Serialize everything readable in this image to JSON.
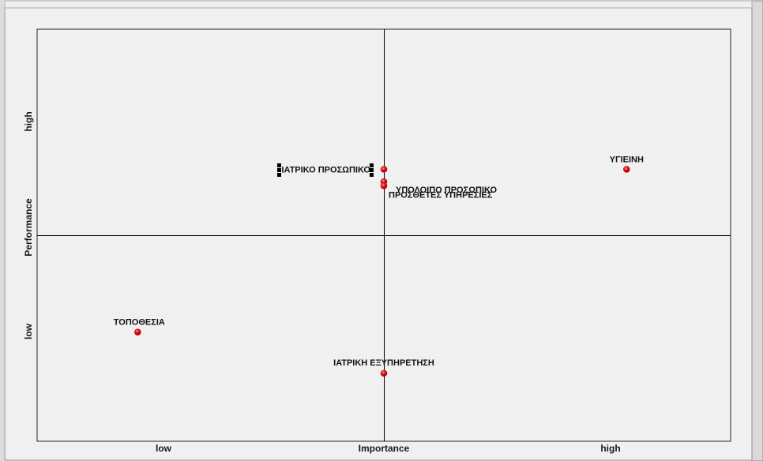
{
  "chart_data": {
    "type": "scatter",
    "title": "",
    "xlabel": "Importance",
    "ylabel": "Performance",
    "x_ticks": {
      "low": "low",
      "high": "high"
    },
    "y_ticks": {
      "low": "low",
      "high": "high"
    },
    "xlim": [
      0,
      1
    ],
    "ylim": [
      0,
      1
    ],
    "quadrant_lines": {
      "x": 0.5,
      "y": 0.5
    },
    "points": [
      {
        "label": "ΙΑΤΡΙΚΟ ΠΡΟΣΩΠΙΚΟ",
        "x": 0.5,
        "y": 0.66,
        "selected": true
      },
      {
        "label": "ΥΠΟΛΟΙΠΟ ΠΡΟΣΩΠΙΚΟ",
        "x": 0.5,
        "y": 0.63
      },
      {
        "label": "ΠΡΟΣΘΕΤΕΣ ΥΠΗΡΕΣΙΕΣ",
        "x": 0.5,
        "y": 0.62
      },
      {
        "label": "ΥΓΙΕΙΝΗ",
        "x": 0.85,
        "y": 0.66
      },
      {
        "label": "ΤΟΠΟΘΕΣΙΑ",
        "x": 0.145,
        "y": 0.265
      },
      {
        "label": "ΙΑΤΡΙΚΗ ΕΞΥΠΗΡΕΤΗΣΗ",
        "x": 0.5,
        "y": 0.165
      }
    ],
    "colors": {
      "point": "#e01010",
      "axis": "#000000",
      "background": "#f0f0f0"
    },
    "grid": false,
    "legend": "none"
  }
}
